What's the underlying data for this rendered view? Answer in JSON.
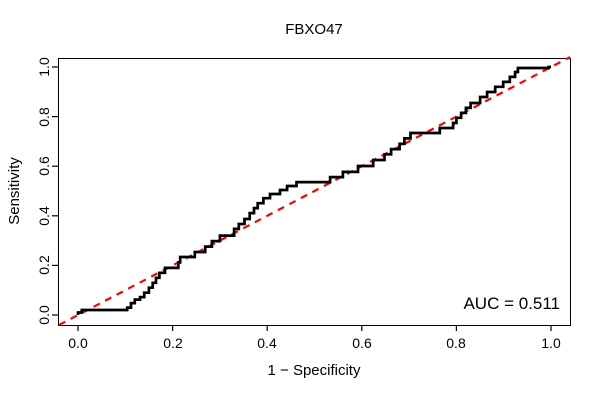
{
  "title": "FBXO47",
  "axes": {
    "x_label": "1 − Specificity",
    "y_label": "Sensitivity",
    "x_ticks": [
      "0.0",
      "0.2",
      "0.4",
      "0.6",
      "0.8",
      "1.0"
    ],
    "y_ticks": [
      "0.0",
      "0.2",
      "0.4",
      "0.6",
      "0.8",
      "1.0"
    ]
  },
  "annotation": {
    "auc_label": "AUC = 0.511"
  },
  "colors": {
    "roc_curve": "#000000",
    "reference_line": "#FF0000",
    "box": "#000000"
  },
  "chart_data": {
    "type": "line",
    "title": "FBXO47",
    "xlabel": "1 − Specificity",
    "ylabel": "Sensitivity",
    "xlim": [
      -0.04,
      1.04
    ],
    "ylim": [
      -0.04,
      1.04
    ],
    "grid": false,
    "legend": "none",
    "auc": 0.511,
    "series": [
      {
        "name": "ROC curve",
        "style": "step",
        "color": "#000000",
        "line_width": 2.7,
        "points": [
          [
            0.0,
            0.0
          ],
          [
            0.0,
            0.01
          ],
          [
            0.008,
            0.02
          ],
          [
            0.104,
            0.03
          ],
          [
            0.112,
            0.048
          ],
          [
            0.12,
            0.062
          ],
          [
            0.131,
            0.072
          ],
          [
            0.14,
            0.09
          ],
          [
            0.15,
            0.11
          ],
          [
            0.158,
            0.13
          ],
          [
            0.165,
            0.15
          ],
          [
            0.172,
            0.17
          ],
          [
            0.184,
            0.19
          ],
          [
            0.212,
            0.212
          ],
          [
            0.216,
            0.234
          ],
          [
            0.247,
            0.254
          ],
          [
            0.269,
            0.276
          ],
          [
            0.283,
            0.298
          ],
          [
            0.3,
            0.32
          ],
          [
            0.33,
            0.347
          ],
          [
            0.34,
            0.367
          ],
          [
            0.352,
            0.387
          ],
          [
            0.363,
            0.411
          ],
          [
            0.372,
            0.431
          ],
          [
            0.38,
            0.451
          ],
          [
            0.392,
            0.471
          ],
          [
            0.406,
            0.488
          ],
          [
            0.427,
            0.504
          ],
          [
            0.442,
            0.52
          ],
          [
            0.462,
            0.536
          ],
          [
            0.533,
            0.556
          ],
          [
            0.56,
            0.577
          ],
          [
            0.592,
            0.601
          ],
          [
            0.624,
            0.625
          ],
          [
            0.648,
            0.648
          ],
          [
            0.662,
            0.669
          ],
          [
            0.68,
            0.69
          ],
          [
            0.69,
            0.712
          ],
          [
            0.703,
            0.734
          ],
          [
            0.765,
            0.754
          ],
          [
            0.793,
            0.774
          ],
          [
            0.8,
            0.795
          ],
          [
            0.81,
            0.815
          ],
          [
            0.82,
            0.835
          ],
          [
            0.83,
            0.855
          ],
          [
            0.85,
            0.879
          ],
          [
            0.865,
            0.899
          ],
          [
            0.882,
            0.92
          ],
          [
            0.899,
            0.94
          ],
          [
            0.913,
            0.96
          ],
          [
            0.924,
            0.98
          ],
          [
            0.93,
            0.996
          ],
          [
            0.995,
            1.0
          ],
          [
            1.0,
            1.0
          ]
        ]
      },
      {
        "name": "reference diagonal",
        "style": "dashed",
        "color": "#FF0000",
        "line_width": 2.2,
        "points": [
          [
            -0.04,
            -0.04
          ],
          [
            1.04,
            1.04
          ]
        ]
      }
    ]
  }
}
